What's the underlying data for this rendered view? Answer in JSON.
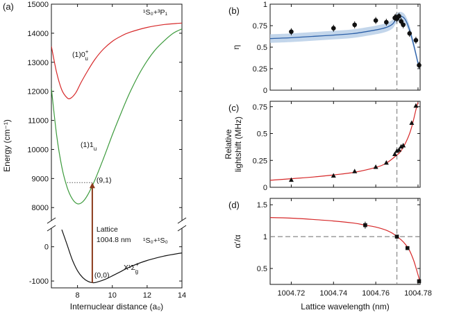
{
  "figure": {
    "panel_labels": [
      "(a)",
      "(b)",
      "(c)",
      "(d)"
    ],
    "xlabel_left": "Internuclear distance (a₀)",
    "xlabel_right": "Lattice wavelength (nm)"
  },
  "chart_data": [
    {
      "id": "a",
      "type": "line",
      "ylabel": "Energy (cm⁻¹)",
      "xlabel": "Internuclear distance (a₀)",
      "xlim": [
        6.5,
        14
      ],
      "x_ticks": [
        8,
        10,
        12,
        14
      ],
      "x_tick_labels": [
        "8",
        "10",
        "12",
        "14"
      ],
      "upper_ylim": [
        7600,
        15000
      ],
      "upper_y_ticks": [
        8000,
        9000,
        10000,
        11000,
        12000,
        13000,
        14000,
        15000
      ],
      "upper_y_tick_labels": [
        "8000",
        "9000",
        "10000",
        "11000",
        "12000",
        "13000",
        "14000",
        "15000"
      ],
      "lower_ylim": [
        -1200,
        500
      ],
      "lower_y_ticks": [
        -1000,
        0
      ],
      "lower_y_tick_labels": [
        "-1000",
        "0"
      ],
      "series": [
        {
          "name": "(1)0u+",
          "label_main": "(1)0",
          "label_sup": "+",
          "label_sub": "u",
          "color": "#d62728",
          "x": [
            6.5,
            6.8,
            7.1,
            7.4,
            7.6,
            7.9,
            8.2,
            8.6,
            9.0,
            9.5,
            10.0,
            10.5,
            11.0,
            12.0,
            13.0,
            14.0
          ],
          "y": [
            13550,
            12650,
            12050,
            11780,
            11760,
            11950,
            12300,
            12720,
            13100,
            13460,
            13720,
            13900,
            14030,
            14200,
            14300,
            14350
          ]
        },
        {
          "name": "(1)1u",
          "label_main": "(1)1",
          "label_sup": "",
          "label_sub": "u",
          "color": "#3c9a3c",
          "x": [
            6.5,
            6.8,
            7.1,
            7.4,
            7.7,
            8.0,
            8.3,
            8.6,
            9.0,
            9.5,
            10.0,
            10.5,
            11.0,
            11.5,
            12.0,
            12.5,
            13.0,
            13.5,
            14.0
          ],
          "y": [
            12100,
            10500,
            9400,
            8700,
            8300,
            8130,
            8200,
            8450,
            8950,
            9700,
            10500,
            11250,
            11950,
            12550,
            13050,
            13450,
            13750,
            14000,
            14150
          ]
        },
        {
          "name": "X1Σg+",
          "label_main": "X¹Σ",
          "label_sup": "+",
          "label_sub": "g",
          "color": "#111111",
          "x": [
            7.1,
            7.4,
            7.7,
            8.0,
            8.3,
            8.6,
            8.9,
            9.2,
            9.6,
            10.0,
            10.5,
            11.0,
            12.0,
            13.0,
            14.0
          ],
          "y": [
            500,
            60,
            -380,
            -700,
            -900,
            -1010,
            -1050,
            -1020,
            -950,
            -850,
            -720,
            -590,
            -400,
            -270,
            -180
          ]
        }
      ],
      "arrow": {
        "x": 8.85,
        "from": -1050,
        "to": 8860,
        "label_line1": "Lattice",
        "label_line2": "1004.8 nm",
        "color": "#8b3a1a"
      },
      "dotted_level": {
        "y": 8860,
        "x_from": 7.4,
        "x_to": 8.85
      },
      "annotations": [
        {
          "text": "(9,1)"
        },
        {
          "text": "(0,0)"
        }
      ],
      "asymptote_upper": {
        "main1": "¹S₀+³P₁"
      },
      "asymptote_lower": {
        "main1": "¹S₀+¹S₀"
      }
    },
    {
      "id": "b",
      "type": "scatter",
      "ylabel": "η",
      "xlim": [
        1004.71,
        1004.781
      ],
      "ylim": [
        0,
        1
      ],
      "y_ticks": [
        0,
        0.25,
        0.5,
        0.75,
        1
      ],
      "y_tick_labels": [
        "0",
        "0.25",
        "0.5",
        "0.75",
        "1"
      ],
      "vline_x": 1004.77,
      "points_x": [
        1004.72,
        1004.74,
        1004.75,
        1004.76,
        1004.765,
        1004.769,
        1004.7695,
        1004.77,
        1004.771,
        1004.772,
        1004.773,
        1004.776,
        1004.779,
        1004.7805
      ],
      "points_y": [
        0.68,
        0.72,
        0.76,
        0.81,
        0.79,
        0.84,
        0.85,
        0.83,
        0.86,
        0.8,
        0.76,
        0.66,
        0.58,
        0.29
      ],
      "model_x": [
        1004.71,
        1004.72,
        1004.73,
        1004.74,
        1004.75,
        1004.76,
        1004.765,
        1004.768,
        1004.77,
        1004.772,
        1004.774,
        1004.776,
        1004.778,
        1004.7805
      ],
      "model_y": [
        0.6,
        0.61,
        0.625,
        0.64,
        0.66,
        0.7,
        0.73,
        0.77,
        0.84,
        0.86,
        0.82,
        0.7,
        0.52,
        0.26
      ],
      "band_halfwidth": [
        0.05,
        0.05,
        0.05,
        0.05,
        0.05,
        0.05,
        0.05,
        0.05,
        0.05,
        0.05,
        0.05,
        0.05,
        0.04,
        0.03
      ]
    },
    {
      "id": "c",
      "type": "scatter",
      "ylabel_line1": "Relative",
      "ylabel_line2": "lightshift (MHz)",
      "xlim": [
        1004.71,
        1004.781
      ],
      "ylim": [
        0,
        0.8
      ],
      "y_ticks": [
        0,
        0.25,
        0.5,
        0.75
      ],
      "y_tick_labels": [
        "0",
        "0.25",
        "0.5",
        "0.75"
      ],
      "vline_x": 1004.77,
      "points_x": [
        1004.72,
        1004.74,
        1004.75,
        1004.76,
        1004.765,
        1004.769,
        1004.77,
        1004.771,
        1004.772,
        1004.773,
        1004.777,
        1004.779
      ],
      "points_y": [
        0.07,
        0.11,
        0.15,
        0.19,
        0.23,
        0.31,
        0.34,
        0.35,
        0.38,
        0.39,
        0.6,
        0.76
      ],
      "fit_x": [
        1004.71,
        1004.72,
        1004.73,
        1004.74,
        1004.75,
        1004.76,
        1004.765,
        1004.77,
        1004.772,
        1004.775,
        1004.777,
        1004.779,
        1004.78
      ],
      "fit_y": [
        0.065,
        0.08,
        0.095,
        0.115,
        0.14,
        0.185,
        0.225,
        0.3,
        0.34,
        0.45,
        0.56,
        0.72,
        0.79
      ]
    },
    {
      "id": "d",
      "type": "scatter",
      "ylabel": "α'/α",
      "xlabel": "Lattice wavelength (nm)",
      "xlim": [
        1004.71,
        1004.781
      ],
      "ylim": [
        0.25,
        1.6
      ],
      "y_ticks": [
        0.5,
        1,
        1.5
      ],
      "y_tick_labels": [
        "0.5",
        "1",
        "1.5"
      ],
      "x_ticks": [
        1004.72,
        1004.74,
        1004.76,
        1004.78
      ],
      "x_tick_labels": [
        "1004.72",
        "1004.74",
        "1004.76",
        "1004.78"
      ],
      "vline_x": 1004.77,
      "hline_y": 1,
      "points_x": [
        1004.755,
        1004.77,
        1004.775,
        1004.7805
      ],
      "points_y": [
        1.18,
        1.0,
        0.82,
        0.3
      ],
      "fit_x": [
        1004.71,
        1004.72,
        1004.73,
        1004.74,
        1004.75,
        1004.755,
        1004.76,
        1004.765,
        1004.768,
        1004.77,
        1004.772,
        1004.774,
        1004.776,
        1004.778,
        1004.78,
        1004.781
      ],
      "fit_y": [
        1.3,
        1.29,
        1.27,
        1.245,
        1.21,
        1.18,
        1.15,
        1.1,
        1.05,
        1.0,
        0.95,
        0.88,
        0.78,
        0.62,
        0.4,
        0.28
      ]
    }
  ]
}
